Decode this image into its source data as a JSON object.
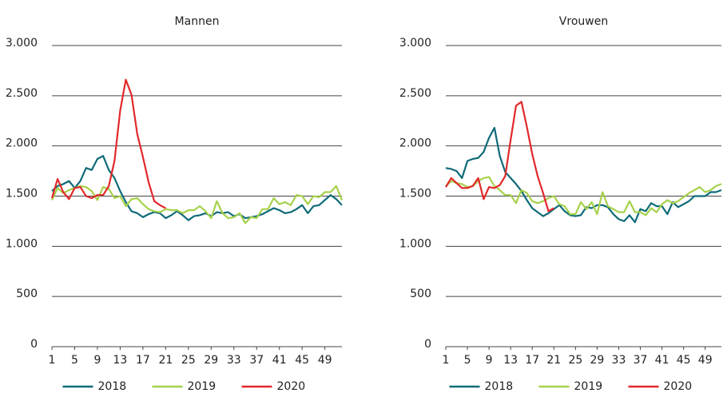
{
  "chart_data": [
    {
      "type": "line",
      "title": "Mannen",
      "x": [
        1,
        2,
        3,
        4,
        5,
        6,
        7,
        8,
        9,
        10,
        11,
        12,
        13,
        14,
        15,
        16,
        17,
        18,
        19,
        20,
        21,
        22,
        23,
        24,
        25,
        26,
        27,
        28,
        29,
        30,
        31,
        32,
        33,
        34,
        35,
        36,
        37,
        38,
        39,
        40,
        41,
        42,
        43,
        44,
        45,
        46,
        47,
        48,
        49,
        50,
        51,
        52
      ],
      "xlim": [
        1,
        52
      ],
      "xticks": [
        1,
        5,
        9,
        13,
        17,
        21,
        25,
        29,
        33,
        37,
        41,
        45,
        49
      ],
      "ylim": [
        0,
        3000
      ],
      "yticks": [
        0,
        500,
        {
          "value": 1000,
          "label": "1.000"
        },
        {
          "value": 1500,
          "label": "1.500"
        },
        {
          "value": 2000,
          "label": "2.000"
        },
        {
          "value": 2500,
          "label": "2.500"
        },
        {
          "value": 3000,
          "label": "3.000"
        }
      ],
      "grid": true,
      "series": [
        {
          "name": "2018",
          "color": "#0f6b78",
          "values": [
            1550,
            1600,
            1620,
            1650,
            1580,
            1650,
            1780,
            1760,
            1870,
            1900,
            1760,
            1680,
            1550,
            1440,
            1350,
            1330,
            1290,
            1320,
            1340,
            1330,
            1280,
            1310,
            1350,
            1310,
            1260,
            1300,
            1310,
            1330,
            1300,
            1340,
            1330,
            1340,
            1300,
            1320,
            1280,
            1290,
            1300,
            1320,
            1350,
            1380,
            1360,
            1330,
            1340,
            1370,
            1410,
            1330,
            1400,
            1410,
            1460,
            1510,
            1470,
            1410
          ]
        },
        {
          "name": "2019",
          "color": "#a6d14b",
          "values": [
            1460,
            1580,
            1530,
            1560,
            1580,
            1600,
            1590,
            1550,
            1460,
            1590,
            1570,
            1480,
            1500,
            1400,
            1470,
            1480,
            1420,
            1370,
            1350,
            1340,
            1370,
            1360,
            1360,
            1330,
            1360,
            1360,
            1400,
            1350,
            1280,
            1450,
            1330,
            1280,
            1290,
            1330,
            1230,
            1290,
            1280,
            1370,
            1370,
            1480,
            1420,
            1440,
            1410,
            1510,
            1500,
            1420,
            1500,
            1490,
            1540,
            1540,
            1600,
            1460
          ]
        },
        {
          "name": "2020",
          "color": "#e2282b",
          "values": [
            1480,
            1670,
            1540,
            1470,
            1580,
            1590,
            1500,
            1480,
            1510,
            1510,
            1600,
            1850,
            2350,
            2660,
            2510,
            2120,
            1890,
            1640,
            1450,
            1410,
            1380,
            null,
            null,
            null,
            null,
            null,
            null,
            null,
            null,
            null,
            null,
            null,
            null,
            null,
            null,
            null,
            null,
            null,
            null,
            null,
            null,
            null,
            null,
            null,
            null,
            null,
            null,
            null,
            null,
            null,
            null,
            null
          ]
        }
      ]
    },
    {
      "type": "line",
      "title": "Vrouwen",
      "x": [
        1,
        2,
        3,
        4,
        5,
        6,
        7,
        8,
        9,
        10,
        11,
        12,
        13,
        14,
        15,
        16,
        17,
        18,
        19,
        20,
        21,
        22,
        23,
        24,
        25,
        26,
        27,
        28,
        29,
        30,
        31,
        32,
        33,
        34,
        35,
        36,
        37,
        38,
        39,
        40,
        41,
        42,
        43,
        44,
        45,
        46,
        47,
        48,
        49,
        50,
        51,
        52
      ],
      "xlim": [
        1,
        52
      ],
      "xticks": [
        1,
        5,
        9,
        13,
        17,
        21,
        25,
        29,
        33,
        37,
        41,
        45,
        49
      ],
      "ylim": [
        0,
        3000
      ],
      "yticks": [
        0,
        500,
        {
          "value": 1000,
          "label": "1.000"
        },
        {
          "value": 1500,
          "label": "1.500"
        },
        {
          "value": 2000,
          "label": "2.000"
        },
        {
          "value": 2500,
          "label": "2.500"
        },
        {
          "value": 3000,
          "label": "3.000"
        }
      ],
      "grid": true,
      "series": [
        {
          "name": "2018",
          "color": "#0f6b78",
          "values": [
            1780,
            1770,
            1750,
            1680,
            1850,
            1870,
            1880,
            1940,
            2080,
            2180,
            1900,
            1740,
            1680,
            1620,
            1550,
            1460,
            1380,
            1340,
            1300,
            1330,
            1370,
            1410,
            1350,
            1310,
            1300,
            1310,
            1390,
            1380,
            1410,
            1410,
            1390,
            1320,
            1270,
            1250,
            1310,
            1240,
            1370,
            1350,
            1430,
            1400,
            1400,
            1320,
            1440,
            1390,
            1420,
            1450,
            1500,
            1500,
            1500,
            1540,
            1540,
            1560
          ]
        },
        {
          "name": "2019",
          "color": "#a6d14b",
          "values": [
            1600,
            1650,
            1630,
            1620,
            1590,
            1600,
            1650,
            1680,
            1690,
            1600,
            1560,
            1510,
            1510,
            1430,
            1560,
            1530,
            1450,
            1430,
            1450,
            1480,
            1500,
            1420,
            1400,
            1320,
            1320,
            1440,
            1370,
            1440,
            1320,
            1540,
            1400,
            1370,
            1340,
            1340,
            1450,
            1340,
            1340,
            1310,
            1380,
            1340,
            1420,
            1460,
            1430,
            1450,
            1490,
            1530,
            1560,
            1590,
            1540,
            1560,
            1600,
            1620
          ]
        },
        {
          "name": "2020",
          "color": "#e2282b",
          "values": [
            1590,
            1680,
            1630,
            1580,
            1580,
            1600,
            1680,
            1470,
            1590,
            1580,
            1610,
            1700,
            2060,
            2400,
            2440,
            2190,
            1920,
            1700,
            1530,
            1350,
            1380,
            null,
            null,
            null,
            null,
            null,
            null,
            null,
            null,
            null,
            null,
            null,
            null,
            null,
            null,
            null,
            null,
            null,
            null,
            null,
            null,
            null,
            null,
            null,
            null,
            null,
            null,
            null,
            null,
            null,
            null,
            null
          ]
        }
      ]
    }
  ]
}
